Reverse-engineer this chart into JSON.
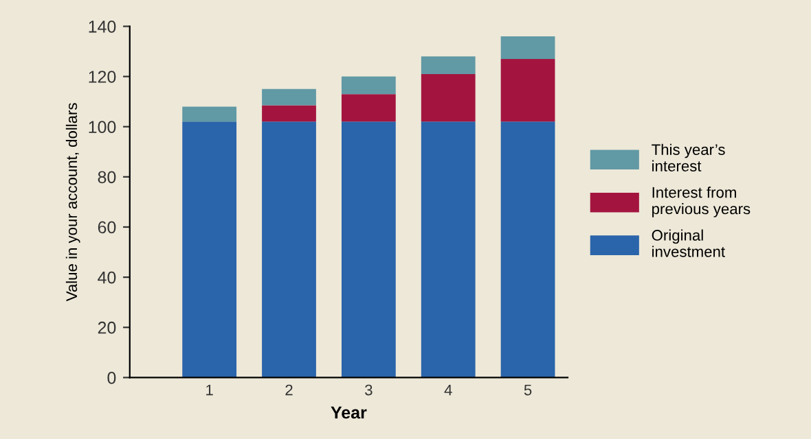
{
  "chart_data": {
    "type": "bar",
    "stacked": true,
    "xlabel": "Year",
    "ylabel": "Value in your account, dollars",
    "categories": [
      "1",
      "2",
      "3",
      "4",
      "5"
    ],
    "series": [
      {
        "name": "Original investment",
        "color": "#2a64aa",
        "values": [
          102,
          102,
          102,
          102,
          102
        ]
      },
      {
        "name": "Interest from previous years",
        "color": "#a3153f",
        "values": [
          0,
          6.5,
          11,
          19,
          25
        ]
      },
      {
        "name": "This year’s interest",
        "color": "#6199a5",
        "values": [
          6,
          6.5,
          7,
          7,
          9
        ]
      }
    ],
    "ylim": [
      0,
      140
    ],
    "yticks": [
      0,
      20,
      40,
      60,
      80,
      100,
      120,
      140
    ],
    "grid": false,
    "legend": "right"
  }
}
